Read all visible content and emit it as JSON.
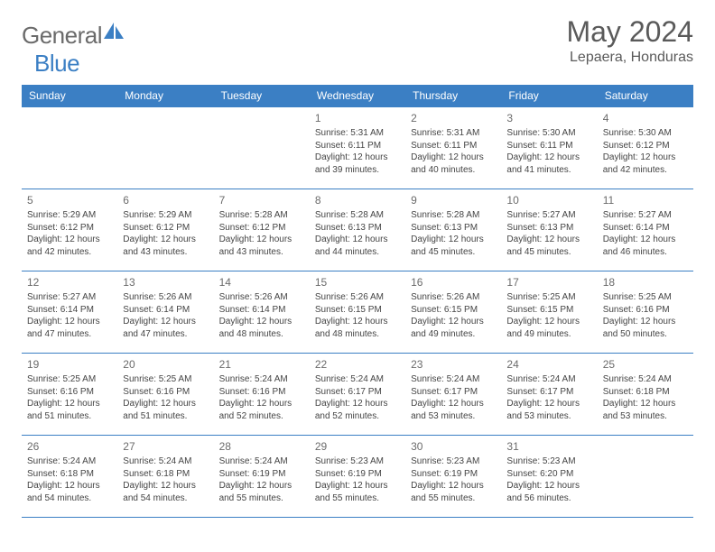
{
  "logo": {
    "text_general": "General",
    "text_blue": "Blue",
    "shape_color": "#3b7fc4"
  },
  "title": "May 2024",
  "location": "Lepaera, Honduras",
  "colors": {
    "header_bg": "#3b7fc4",
    "header_text": "#ffffff",
    "border": "#3b7fc4",
    "day_text": "#6b6b6b",
    "body_text": "#444444"
  },
  "weekdays": [
    "Sunday",
    "Monday",
    "Tuesday",
    "Wednesday",
    "Thursday",
    "Friday",
    "Saturday"
  ],
  "weeks": [
    [
      {
        "n": "",
        "sr": "",
        "ss": "",
        "dl": ""
      },
      {
        "n": "",
        "sr": "",
        "ss": "",
        "dl": ""
      },
      {
        "n": "",
        "sr": "",
        "ss": "",
        "dl": ""
      },
      {
        "n": "1",
        "sr": "Sunrise: 5:31 AM",
        "ss": "Sunset: 6:11 PM",
        "dl": "Daylight: 12 hours and 39 minutes."
      },
      {
        "n": "2",
        "sr": "Sunrise: 5:31 AM",
        "ss": "Sunset: 6:11 PM",
        "dl": "Daylight: 12 hours and 40 minutes."
      },
      {
        "n": "3",
        "sr": "Sunrise: 5:30 AM",
        "ss": "Sunset: 6:11 PM",
        "dl": "Daylight: 12 hours and 41 minutes."
      },
      {
        "n": "4",
        "sr": "Sunrise: 5:30 AM",
        "ss": "Sunset: 6:12 PM",
        "dl": "Daylight: 12 hours and 42 minutes."
      }
    ],
    [
      {
        "n": "5",
        "sr": "Sunrise: 5:29 AM",
        "ss": "Sunset: 6:12 PM",
        "dl": "Daylight: 12 hours and 42 minutes."
      },
      {
        "n": "6",
        "sr": "Sunrise: 5:29 AM",
        "ss": "Sunset: 6:12 PM",
        "dl": "Daylight: 12 hours and 43 minutes."
      },
      {
        "n": "7",
        "sr": "Sunrise: 5:28 AM",
        "ss": "Sunset: 6:12 PM",
        "dl": "Daylight: 12 hours and 43 minutes."
      },
      {
        "n": "8",
        "sr": "Sunrise: 5:28 AM",
        "ss": "Sunset: 6:13 PM",
        "dl": "Daylight: 12 hours and 44 minutes."
      },
      {
        "n": "9",
        "sr": "Sunrise: 5:28 AM",
        "ss": "Sunset: 6:13 PM",
        "dl": "Daylight: 12 hours and 45 minutes."
      },
      {
        "n": "10",
        "sr": "Sunrise: 5:27 AM",
        "ss": "Sunset: 6:13 PM",
        "dl": "Daylight: 12 hours and 45 minutes."
      },
      {
        "n": "11",
        "sr": "Sunrise: 5:27 AM",
        "ss": "Sunset: 6:14 PM",
        "dl": "Daylight: 12 hours and 46 minutes."
      }
    ],
    [
      {
        "n": "12",
        "sr": "Sunrise: 5:27 AM",
        "ss": "Sunset: 6:14 PM",
        "dl": "Daylight: 12 hours and 47 minutes."
      },
      {
        "n": "13",
        "sr": "Sunrise: 5:26 AM",
        "ss": "Sunset: 6:14 PM",
        "dl": "Daylight: 12 hours and 47 minutes."
      },
      {
        "n": "14",
        "sr": "Sunrise: 5:26 AM",
        "ss": "Sunset: 6:14 PM",
        "dl": "Daylight: 12 hours and 48 minutes."
      },
      {
        "n": "15",
        "sr": "Sunrise: 5:26 AM",
        "ss": "Sunset: 6:15 PM",
        "dl": "Daylight: 12 hours and 48 minutes."
      },
      {
        "n": "16",
        "sr": "Sunrise: 5:26 AM",
        "ss": "Sunset: 6:15 PM",
        "dl": "Daylight: 12 hours and 49 minutes."
      },
      {
        "n": "17",
        "sr": "Sunrise: 5:25 AM",
        "ss": "Sunset: 6:15 PM",
        "dl": "Daylight: 12 hours and 49 minutes."
      },
      {
        "n": "18",
        "sr": "Sunrise: 5:25 AM",
        "ss": "Sunset: 6:16 PM",
        "dl": "Daylight: 12 hours and 50 minutes."
      }
    ],
    [
      {
        "n": "19",
        "sr": "Sunrise: 5:25 AM",
        "ss": "Sunset: 6:16 PM",
        "dl": "Daylight: 12 hours and 51 minutes."
      },
      {
        "n": "20",
        "sr": "Sunrise: 5:25 AM",
        "ss": "Sunset: 6:16 PM",
        "dl": "Daylight: 12 hours and 51 minutes."
      },
      {
        "n": "21",
        "sr": "Sunrise: 5:24 AM",
        "ss": "Sunset: 6:16 PM",
        "dl": "Daylight: 12 hours and 52 minutes."
      },
      {
        "n": "22",
        "sr": "Sunrise: 5:24 AM",
        "ss": "Sunset: 6:17 PM",
        "dl": "Daylight: 12 hours and 52 minutes."
      },
      {
        "n": "23",
        "sr": "Sunrise: 5:24 AM",
        "ss": "Sunset: 6:17 PM",
        "dl": "Daylight: 12 hours and 53 minutes."
      },
      {
        "n": "24",
        "sr": "Sunrise: 5:24 AM",
        "ss": "Sunset: 6:17 PM",
        "dl": "Daylight: 12 hours and 53 minutes."
      },
      {
        "n": "25",
        "sr": "Sunrise: 5:24 AM",
        "ss": "Sunset: 6:18 PM",
        "dl": "Daylight: 12 hours and 53 minutes."
      }
    ],
    [
      {
        "n": "26",
        "sr": "Sunrise: 5:24 AM",
        "ss": "Sunset: 6:18 PM",
        "dl": "Daylight: 12 hours and 54 minutes."
      },
      {
        "n": "27",
        "sr": "Sunrise: 5:24 AM",
        "ss": "Sunset: 6:18 PM",
        "dl": "Daylight: 12 hours and 54 minutes."
      },
      {
        "n": "28",
        "sr": "Sunrise: 5:24 AM",
        "ss": "Sunset: 6:19 PM",
        "dl": "Daylight: 12 hours and 55 minutes."
      },
      {
        "n": "29",
        "sr": "Sunrise: 5:23 AM",
        "ss": "Sunset: 6:19 PM",
        "dl": "Daylight: 12 hours and 55 minutes."
      },
      {
        "n": "30",
        "sr": "Sunrise: 5:23 AM",
        "ss": "Sunset: 6:19 PM",
        "dl": "Daylight: 12 hours and 55 minutes."
      },
      {
        "n": "31",
        "sr": "Sunrise: 5:23 AM",
        "ss": "Sunset: 6:20 PM",
        "dl": "Daylight: 12 hours and 56 minutes."
      },
      {
        "n": "",
        "sr": "",
        "ss": "",
        "dl": ""
      }
    ]
  ]
}
